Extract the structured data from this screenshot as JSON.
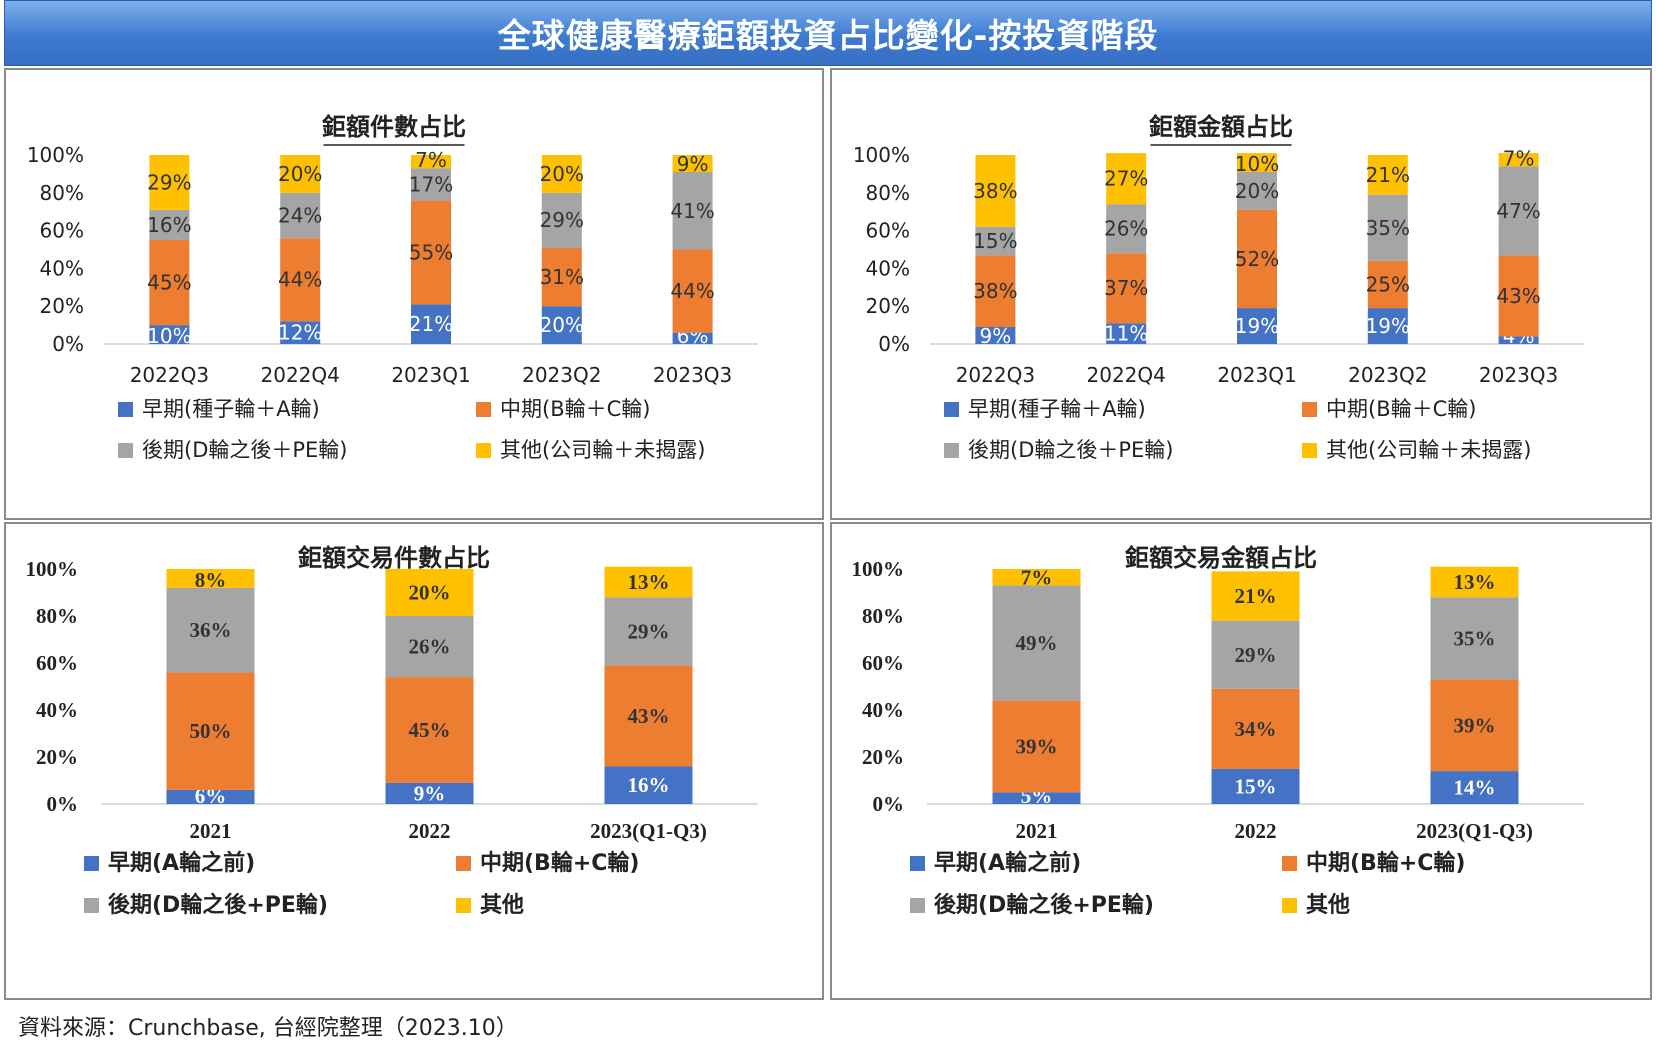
{
  "page": {
    "title": "全球健康醫療鉅額投資占比變化-按投資階段",
    "source": "資料來源：Crunchbase, 台經院整理（2023.10）"
  },
  "colors": {
    "early": "#4472c4",
    "mid": "#ed7d31",
    "late": "#a5a5a5",
    "other": "#ffc000"
  },
  "chart_data": [
    {
      "type": "bar",
      "stacked": true,
      "title": "鉅額件數占比",
      "categories": [
        "2022Q3",
        "2022Q4",
        "2023Q1",
        "2023Q2",
        "2023Q3"
      ],
      "yticks": [
        "0%",
        "20%",
        "40%",
        "60%",
        "80%",
        "100%"
      ],
      "ylim": [
        0,
        100
      ],
      "legend_position": "bottom",
      "series": [
        {
          "name": "早期(種子輪＋A輪)",
          "key": "early",
          "values": [
            10,
            12,
            21,
            20,
            6
          ],
          "labels": [
            "10%",
            "12%",
            "21%",
            "20%",
            "6%"
          ]
        },
        {
          "name": "中期(B輪＋C輪)",
          "key": "mid",
          "values": [
            45,
            44,
            55,
            31,
            44
          ],
          "labels": [
            "45%",
            "44%",
            "55%",
            "31%",
            "44%"
          ]
        },
        {
          "name": "後期(D輪之後＋PE輪)",
          "key": "late",
          "values": [
            16,
            24,
            17,
            29,
            41
          ],
          "labels": [
            "16%",
            "24%",
            "17%",
            "29%",
            "41%"
          ]
        },
        {
          "name": "其他(公司輪＋未揭露)",
          "key": "other",
          "values": [
            29,
            20,
            7,
            20,
            9
          ],
          "labels": [
            "29%",
            "20%",
            "7%",
            "20%",
            "9%"
          ]
        }
      ]
    },
    {
      "type": "bar",
      "stacked": true,
      "title": "鉅額金額占比",
      "categories": [
        "2022Q3",
        "2022Q4",
        "2023Q1",
        "2023Q2",
        "2023Q3"
      ],
      "yticks": [
        "0%",
        "20%",
        "40%",
        "60%",
        "80%",
        "100%"
      ],
      "ylim": [
        0,
        100
      ],
      "legend_position": "bottom",
      "series": [
        {
          "name": "早期(種子輪＋A輪)",
          "key": "early",
          "values": [
            9,
            11,
            19,
            19,
            4
          ],
          "labels": [
            "9%",
            "11%",
            "19%",
            "19%",
            "4%"
          ]
        },
        {
          "name": "中期(B輪＋C輪)",
          "key": "mid",
          "values": [
            38,
            37,
            52,
            25,
            43
          ],
          "labels": [
            "38%",
            "37%",
            "52%",
            "25%",
            "43%"
          ]
        },
        {
          "name": "後期(D輪之後＋PE輪)",
          "key": "late",
          "values": [
            15,
            26,
            20,
            35,
            47
          ],
          "labels": [
            "15%",
            "26%",
            "20%",
            "35%",
            "47%"
          ]
        },
        {
          "name": "其他(公司輪＋未揭露)",
          "key": "other",
          "values": [
            38,
            27,
            10,
            21,
            7
          ],
          "labels": [
            "38%",
            "27%",
            "10%",
            "21%",
            "7%"
          ]
        }
      ]
    },
    {
      "type": "bar",
      "stacked": true,
      "title": "鉅額交易件數占比",
      "categories": [
        "2021",
        "2022",
        "2023(Q1-Q3)"
      ],
      "yticks": [
        "0%",
        "20%",
        "40%",
        "60%",
        "80%",
        "100%"
      ],
      "ylim": [
        0,
        100
      ],
      "legend_position": "bottom",
      "series": [
        {
          "name": "早期(A輪之前)",
          "key": "early",
          "values": [
            6,
            9,
            16
          ],
          "labels": [
            "6%",
            "9%",
            "16%"
          ]
        },
        {
          "name": "中期(B輪+C輪)",
          "key": "mid",
          "values": [
            50,
            45,
            43
          ],
          "labels": [
            "50%",
            "45%",
            "43%"
          ]
        },
        {
          "name": "後期(D輪之後+PE輪)",
          "key": "late",
          "values": [
            36,
            26,
            29
          ],
          "labels": [
            "36%",
            "26%",
            "29%"
          ]
        },
        {
          "name": "其他",
          "key": "other",
          "values": [
            8,
            20,
            13
          ],
          "labels": [
            "8%",
            "20%",
            "13%"
          ]
        }
      ]
    },
    {
      "type": "bar",
      "stacked": true,
      "title": "鉅額交易金額占比",
      "categories": [
        "2021",
        "2022",
        "2023(Q1-Q3)"
      ],
      "yticks": [
        "0%",
        "20%",
        "40%",
        "60%",
        "80%",
        "100%"
      ],
      "ylim": [
        0,
        100
      ],
      "legend_position": "bottom",
      "series": [
        {
          "name": "早期(A輪之前)",
          "key": "early",
          "values": [
            5,
            15,
            14
          ],
          "labels": [
            "5%",
            "15%",
            "14%"
          ]
        },
        {
          "name": "中期(B輪+C輪)",
          "key": "mid",
          "values": [
            39,
            34,
            39
          ],
          "labels": [
            "39%",
            "34%",
            "39%"
          ]
        },
        {
          "name": "後期(D輪之後+PE輪)",
          "key": "late",
          "values": [
            49,
            29,
            35
          ],
          "labels": [
            "49%",
            "29%",
            "35%"
          ]
        },
        {
          "name": "其他",
          "key": "other",
          "values": [
            7,
            21,
            13
          ],
          "labels": [
            "7%",
            "21%",
            "13%"
          ]
        }
      ]
    }
  ]
}
